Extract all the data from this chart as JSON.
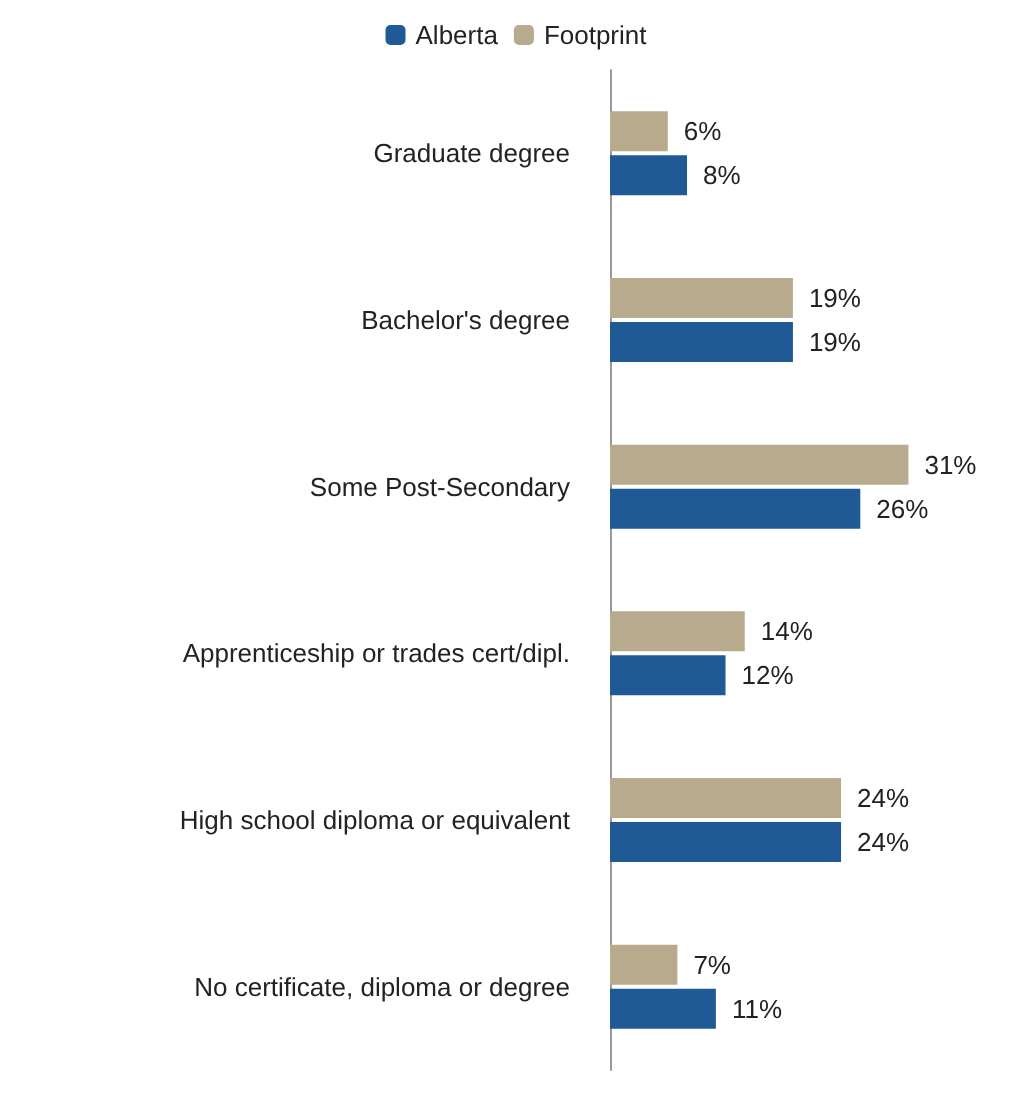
{
  "chart_data": {
    "type": "bar",
    "orientation": "horizontal",
    "legend": "top",
    "grid": false,
    "categories": [
      "Graduate degree",
      "Bachelor's degree",
      "Some Post-Secondary",
      "Apprenticeship or trades cert/dipl.",
      "High school diploma or equivalent",
      "No certificate, diploma or degree"
    ],
    "series": [
      {
        "name": "Alberta",
        "color": "#1f5a96",
        "values": [
          8,
          19,
          26,
          12,
          24,
          11
        ],
        "value_labels": [
          "8%",
          "19%",
          "26%",
          "12%",
          "24%",
          "11%"
        ]
      },
      {
        "name": "Footprint",
        "color": "#b8aa8c",
        "values": [
          6,
          19,
          31,
          14,
          24,
          7
        ],
        "value_labels": [
          "6%",
          "19%",
          "31%",
          "14%",
          "24%",
          "7%"
        ]
      }
    ]
  }
}
